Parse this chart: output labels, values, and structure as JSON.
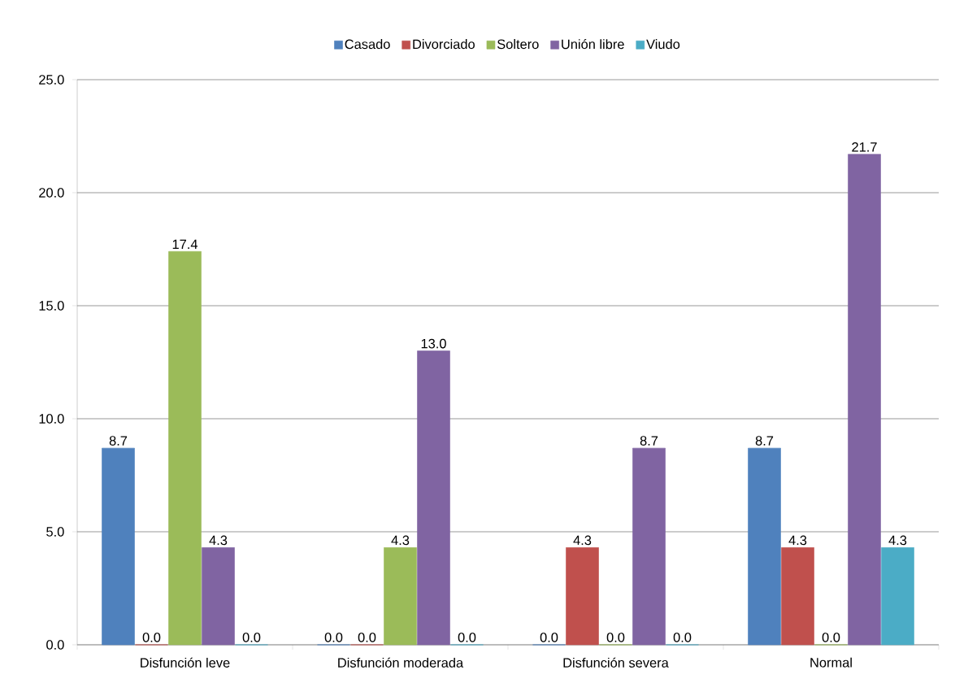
{
  "chart_data": {
    "type": "bar",
    "categories": [
      "Disfunción leve",
      "Disfunción moderada",
      "Disfunción severa",
      "Normal"
    ],
    "series": [
      {
        "name": "Casado",
        "color": "#4f81bd",
        "values": [
          8.7,
          0.0,
          0.0,
          8.7
        ],
        "value_labels": [
          "8.7",
          "0.0",
          "0.0",
          "8.7"
        ]
      },
      {
        "name": "Divorciado",
        "color": "#c0504d",
        "values": [
          0.0,
          0.0,
          4.3,
          4.3
        ],
        "value_labels": [
          "0.0",
          "0.0",
          "4.3",
          "4.3"
        ]
      },
      {
        "name": "Soltero",
        "color": "#9bbb59",
        "values": [
          17.4,
          4.3,
          0.0,
          0.0
        ],
        "value_labels": [
          "17.4",
          "4.3",
          "0.0",
          "0.0"
        ]
      },
      {
        "name": "Unión libre",
        "color": "#8064a2",
        "values": [
          4.3,
          13.0,
          8.7,
          21.7
        ],
        "value_labels": [
          "4.3",
          "13.0",
          "8.7",
          "21.7"
        ]
      },
      {
        "name": "Viudo",
        "color": "#4bacc6",
        "values": [
          0.0,
          0.0,
          0.0,
          4.3
        ],
        "value_labels": [
          "0.0",
          "0.0",
          "0.0",
          "4.3"
        ]
      }
    ],
    "ylim": [
      0,
      25
    ],
    "yticks": [
      {
        "value": 0,
        "label": "0.0"
      },
      {
        "value": 5,
        "label": "5.0"
      },
      {
        "value": 10,
        "label": "10.0"
      },
      {
        "value": 15,
        "label": "15.0"
      },
      {
        "value": 20,
        "label": "20.0"
      },
      {
        "value": 25,
        "label": "25.0"
      }
    ],
    "grid": "y",
    "legend": "top"
  }
}
